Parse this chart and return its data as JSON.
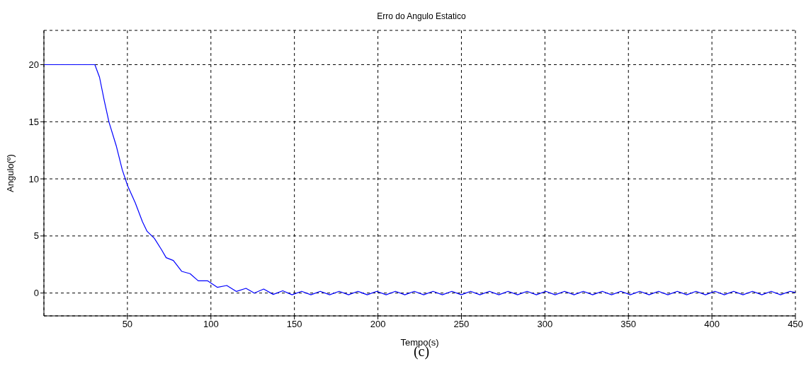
{
  "chart_data": {
    "type": "line",
    "title": "Erro do Angulo Estatico",
    "xlabel": "Tempo(s)",
    "ylabel": "Angulo(º)",
    "annotations": [
      "(c)"
    ],
    "xlim": [
      0,
      450
    ],
    "ylim": [
      -2,
      23
    ],
    "xticks": [
      50,
      100,
      150,
      200,
      250,
      300,
      350,
      400,
      450
    ],
    "yticks": [
      0,
      5,
      10,
      15,
      20
    ],
    "grid": true,
    "marker": "none",
    "line_style": "solid",
    "series": [
      {
        "color": "#0000ff",
        "x": [
          0,
          30.5,
          33.3,
          36.2,
          39,
          43.3,
          46.9,
          50.1,
          54.7,
          59,
          61.8,
          66.1,
          70.4,
          73.2,
          77.5,
          82.5,
          87.5,
          92.4,
          98.1,
          103.8,
          109.5,
          115.3,
          121,
          126,
          131.6,
          137.3,
          143,
          148.6,
          154.3,
          159.9,
          165.5,
          171.1,
          176.8,
          182.4,
          188,
          193.6,
          199.3,
          204.9,
          210.5,
          216.1,
          221.8,
          227.4,
          233,
          238.6,
          244.3,
          249.9,
          255.5,
          261.1,
          266.8,
          272.4,
          278,
          283.6,
          289.3,
          294.9,
          300.5,
          306.1,
          311.8,
          317.4,
          323,
          328.6,
          334.3,
          339.9,
          345.5,
          351.1,
          356.8,
          362.4,
          368,
          373.6,
          379.3,
          384.9,
          390.5,
          396.1,
          401.8,
          407.4,
          413,
          418.6,
          424.3,
          429.9,
          435.5,
          441.1,
          446.8,
          450
        ],
        "values": [
          20,
          20,
          18.9,
          16.8,
          14.95,
          12.9,
          10.8,
          9.4,
          7.9,
          6.25,
          5.4,
          4.8,
          3.8,
          3.1,
          2.85,
          1.9,
          1.7,
          1.07,
          1.07,
          0.5,
          0.66,
          0.14,
          0.41,
          0,
          0.35,
          -0.12,
          0.2,
          -0.15,
          0.15,
          -0.15,
          0.15,
          -0.15,
          0.15,
          -0.15,
          0.15,
          -0.15,
          0.15,
          -0.15,
          0.15,
          -0.15,
          0.15,
          -0.15,
          0.15,
          -0.15,
          0.15,
          -0.15,
          0.15,
          -0.15,
          0.15,
          -0.15,
          0.15,
          -0.15,
          0.15,
          -0.15,
          0.15,
          -0.15,
          0.15,
          -0.15,
          0.15,
          -0.15,
          0.15,
          -0.15,
          0.15,
          -0.15,
          0.15,
          -0.15,
          0.15,
          -0.15,
          0.15,
          -0.15,
          0.15,
          -0.15,
          0.15,
          -0.15,
          0.15,
          -0.15,
          0.15,
          -0.15,
          0.15,
          -0.15,
          0.15,
          0.05
        ]
      }
    ]
  }
}
